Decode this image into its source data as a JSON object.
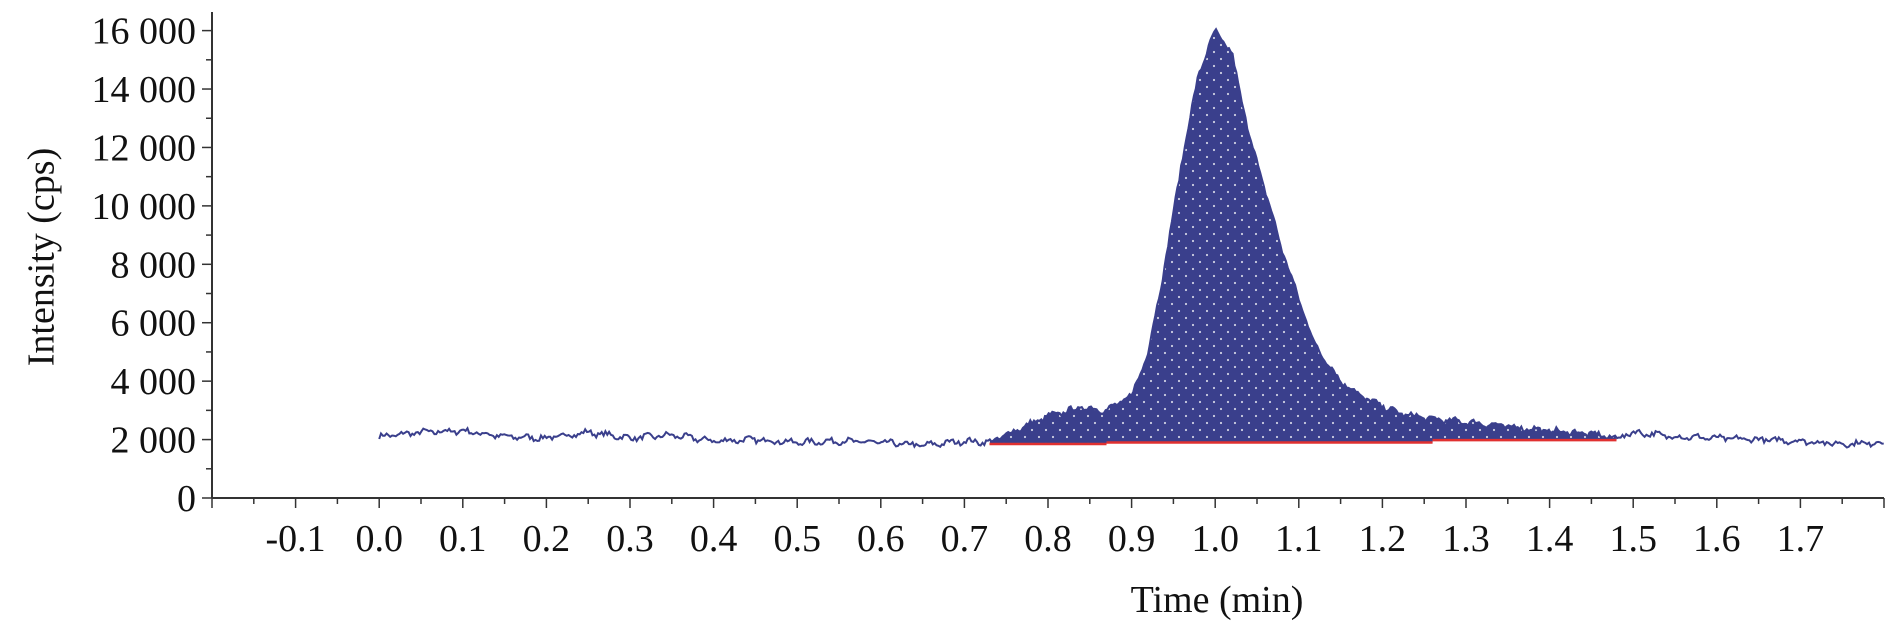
{
  "chart_data": {
    "type": "area",
    "title": "",
    "xlabel": "Time (min)",
    "ylabel": "Intensity (cps)",
    "xlim": [
      -0.2,
      1.8
    ],
    "ylim": [
      0,
      16500
    ],
    "x_ticks": [
      -0.1,
      0.0,
      0.1,
      0.2,
      0.3,
      0.4,
      0.5,
      0.6,
      0.7,
      0.8,
      0.9,
      1.0,
      1.1,
      1.2,
      1.3,
      1.4,
      1.5,
      1.6,
      1.7
    ],
    "x_tick_labels": [
      "-0.1",
      "0.0",
      "0.1",
      "0.2",
      "0.3",
      "0.4",
      "0.5",
      "0.6",
      "0.7",
      "0.8",
      "0.9",
      "1.0",
      "1.1",
      "1.2",
      "1.3",
      "1.4",
      "1.5",
      "1.6",
      "1.7"
    ],
    "y_ticks": [
      0,
      2000,
      4000,
      6000,
      8000,
      10000,
      12000,
      14000,
      16000
    ],
    "y_tick_labels": [
      "0",
      "2 000",
      "4 000",
      "6 000",
      "8 000",
      "10 000",
      "12 000",
      "14 000",
      "16 000"
    ],
    "grid": false,
    "legend": "none",
    "colors": {
      "signal": "#3a3f8c",
      "fill": "#3a3f8c",
      "baseline": "#e03030",
      "axis": "#333333"
    },
    "series": [
      {
        "x": [
          0.0,
          0.05,
          0.1,
          0.15,
          0.2,
          0.25,
          0.3,
          0.35,
          0.4,
          0.45,
          0.5,
          0.55,
          0.6,
          0.65,
          0.7,
          0.73,
          0.76,
          0.8,
          0.84,
          0.87,
          0.9,
          0.92,
          0.94,
          0.96,
          0.98,
          1.0,
          1.02,
          1.04,
          1.06,
          1.08,
          1.1,
          1.12,
          1.15,
          1.18,
          1.22,
          1.26,
          1.3,
          1.35,
          1.4,
          1.45,
          1.48,
          1.5,
          1.55,
          1.6,
          1.65,
          1.7,
          1.75,
          1.8
        ],
        "y": [
          2100,
          2250,
          2300,
          2100,
          2050,
          2250,
          2050,
          2150,
          1950,
          2000,
          1900,
          1950,
          1900,
          1800,
          1950,
          1900,
          2300,
          2800,
          3100,
          3000,
          3500,
          5000,
          8000,
          11500,
          14500,
          16000,
          15200,
          12500,
          10500,
          8500,
          6800,
          5200,
          4000,
          3400,
          2900,
          2700,
          2600,
          2450,
          2300,
          2200,
          2050,
          2250,
          2100,
          2050,
          2000,
          1950,
          1850,
          1900
        ]
      }
    ],
    "integration": {
      "start": 0.73,
      "end": 1.48,
      "baseline_segments": [
        {
          "x": [
            0.73,
            0.87
          ],
          "y": [
            1850,
            1850
          ]
        },
        {
          "x": [
            0.87,
            1.26
          ],
          "y": [
            1900,
            1900
          ]
        },
        {
          "x": [
            1.26,
            1.48
          ],
          "y": [
            1980,
            1980
          ]
        }
      ]
    }
  }
}
